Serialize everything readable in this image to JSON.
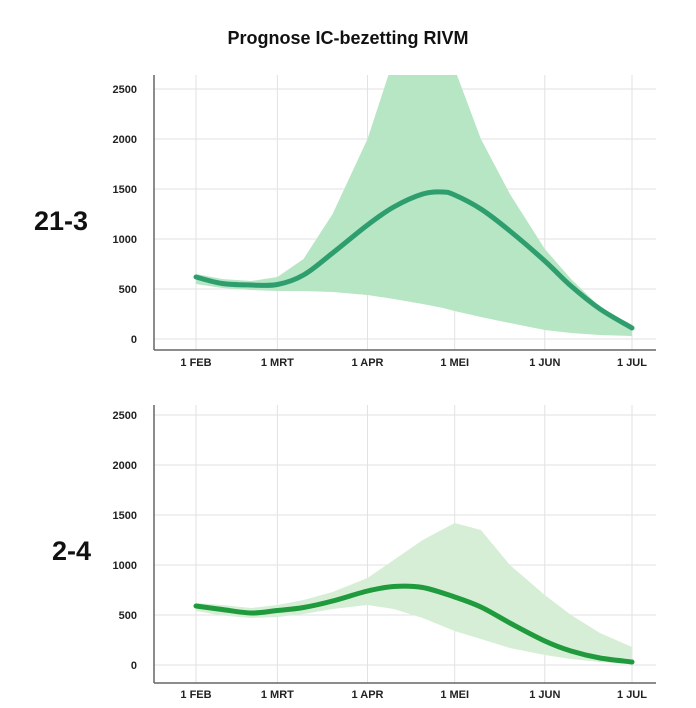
{
  "title": "Prognose IC-bezetting RIVM",
  "chart_data": [
    {
      "type": "area",
      "panel_label": "21-3",
      "x_ticks": [
        "1 FEB",
        "1 MRT",
        "1 APR",
        "1 MEI",
        "1 JUN",
        "1 JUL"
      ],
      "y_ticks": [
        0,
        500,
        1000,
        1500,
        2000,
        2500
      ],
      "ylim": [
        0,
        2500
      ],
      "grid": true,
      "x": [
        "2021-02-01",
        "2021-02-10",
        "2021-02-20",
        "2021-03-01",
        "2021-03-10",
        "2021-03-20",
        "2021-04-01",
        "2021-04-10",
        "2021-04-20",
        "2021-04-27",
        "2021-05-01",
        "2021-05-10",
        "2021-05-20",
        "2021-06-01",
        "2021-06-10",
        "2021-06-20",
        "2021-07-01"
      ],
      "series": [
        {
          "role": "median",
          "color": "#2e9e6e",
          "values": [
            620,
            555,
            540,
            545,
            640,
            860,
            1140,
            1320,
            1450,
            1470,
            1440,
            1300,
            1080,
            780,
            530,
            300,
            110
          ],
          "lower": [
            550,
            510,
            490,
            480,
            480,
            470,
            440,
            400,
            350,
            310,
            280,
            220,
            160,
            90,
            60,
            40,
            30
          ],
          "upper": [
            650,
            600,
            580,
            620,
            800,
            1250,
            2000,
            2800,
            3000,
            3000,
            2700,
            2000,
            1450,
            900,
            600,
            320,
            130
          ]
        }
      ],
      "band_color": "#b6e6c3"
    },
    {
      "type": "area",
      "panel_label": "2-4",
      "x_ticks": [
        "1 FEB",
        "1 MRT",
        "1 APR",
        "1 MEI",
        "1 JUN",
        "1 JUL"
      ],
      "y_ticks": [
        0,
        500,
        1000,
        1500,
        2000,
        2500
      ],
      "ylim": [
        0,
        2500
      ],
      "grid": true,
      "x": [
        "2021-02-01",
        "2021-02-10",
        "2021-02-20",
        "2021-03-01",
        "2021-03-10",
        "2021-03-20",
        "2021-04-01",
        "2021-04-10",
        "2021-04-20",
        "2021-05-01",
        "2021-05-10",
        "2021-05-20",
        "2021-06-01",
        "2021-06-10",
        "2021-06-20",
        "2021-07-01"
      ],
      "series": [
        {
          "role": "median",
          "color": "#1f9a3c",
          "values": [
            590,
            555,
            520,
            545,
            575,
            640,
            740,
            785,
            775,
            680,
            580,
            420,
            240,
            140,
            70,
            30
          ],
          "lower": [
            540,
            495,
            470,
            480,
            510,
            560,
            600,
            560,
            470,
            340,
            260,
            170,
            100,
            60,
            30,
            10
          ],
          "upper": [
            620,
            600,
            570,
            600,
            650,
            730,
            870,
            1050,
            1250,
            1420,
            1350,
            1000,
            700,
            500,
            320,
            180
          ]
        }
      ],
      "band_color": "#d6eed6"
    }
  ]
}
